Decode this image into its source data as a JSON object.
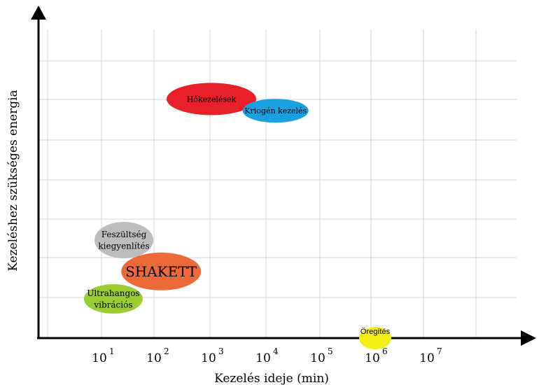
{
  "chart_data": {
    "type": "scatter",
    "title": "",
    "xlabel": "Kezelés ideje (min)",
    "ylabel": "Kezeléshez szükséges energia",
    "x_scale": "log",
    "grid": true,
    "x_ticks": [
      {
        "base": "10",
        "exp": "1",
        "value": 10
      },
      {
        "base": "10",
        "exp": "2",
        "value": 100
      },
      {
        "base": "10",
        "exp": "3",
        "value": 1000
      },
      {
        "base": "10",
        "exp": "4",
        "value": 10000
      },
      {
        "base": "10",
        "exp": "5",
        "value": 100000
      },
      {
        "base": "10",
        "exp": "6",
        "value": 1000000
      },
      {
        "base": "10",
        "exp": "7",
        "value": 10000000
      }
    ],
    "y_ticks_labeled": false,
    "points": [
      {
        "label": "Hőkezelések",
        "x": 1000,
        "y": 0.61,
        "color": "#e8202a"
      },
      {
        "label": "Kriogén kezelés",
        "x": 15000,
        "y": 0.58,
        "color": "#1ca1e0"
      },
      {
        "label": "Feszültség kiegyenlítés",
        "x": 25,
        "y": 0.25,
        "color": "#bdbdbd"
      },
      {
        "label": "SHAKETT",
        "x": 120,
        "y": 0.17,
        "color": "#ec6a3a"
      },
      {
        "label": "Ultrahangos vibrációs",
        "x": 16,
        "y": 0.1,
        "color": "#9acd32"
      },
      {
        "label": "Öregítés",
        "x": 1000000,
        "y": 0.0,
        "color": "#f4ef12"
      }
    ]
  }
}
